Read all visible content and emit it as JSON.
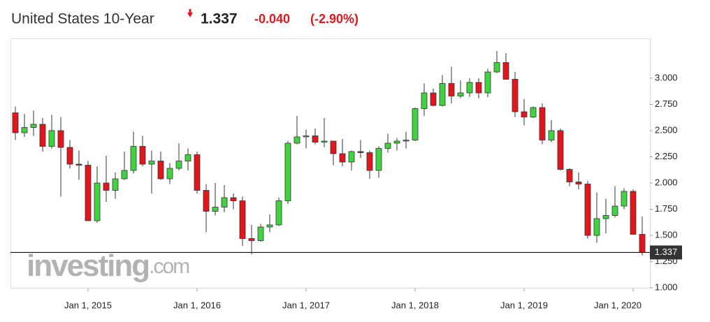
{
  "header": {
    "name": "United States 10-Year",
    "price": "1.337",
    "change": "-0.040",
    "change_pct": "(-2.90%)"
  },
  "chart_data": {
    "type": "candlestick",
    "watermark": [
      "investing",
      ".com"
    ],
    "categories": [
      null,
      null,
      null,
      null,
      null,
      null,
      null,
      null,
      "Jan 1, 2015",
      null,
      null,
      null,
      null,
      null,
      null,
      null,
      null,
      null,
      null,
      null,
      "Jan 1, 2016",
      null,
      null,
      null,
      null,
      null,
      null,
      null,
      null,
      null,
      null,
      null,
      "Jan 1, 2017",
      null,
      null,
      null,
      null,
      null,
      null,
      null,
      null,
      null,
      null,
      null,
      "Jan 1, 2018",
      null,
      null,
      null,
      null,
      null,
      null,
      null,
      null,
      null,
      null,
      null,
      "Jan 1, 2019",
      null,
      null,
      null,
      null,
      null,
      null,
      null,
      null,
      null,
      null,
      null,
      "Jan 1, 2020",
      null
    ],
    "open": [
      2.67,
      2.48,
      2.53,
      2.56,
      2.35,
      2.5,
      2.34,
      2.18,
      2.17,
      1.64,
      2.0,
      1.93,
      2.04,
      2.12,
      2.35,
      2.18,
      2.21,
      2.04,
      2.14,
      2.21,
      2.27,
      1.93,
      1.73,
      1.77,
      1.86,
      1.83,
      1.47,
      1.45,
      1.58,
      1.6,
      1.83,
      2.38,
      2.44,
      2.45,
      2.39,
      2.4,
      2.28,
      2.2,
      2.3,
      2.29,
      2.12,
      2.33,
      2.38,
      2.4,
      2.41,
      2.71,
      2.86,
      2.74,
      2.95,
      2.83,
      2.86,
      2.96,
      2.86,
      3.06,
      3.15,
      2.99,
      2.68,
      2.63,
      2.72,
      2.41,
      2.5,
      2.13,
      2.01,
      1.99,
      1.5,
      1.66,
      1.69,
      1.78,
      1.92,
      1.51
    ],
    "high": [
      2.73,
      2.66,
      2.69,
      2.62,
      2.65,
      2.63,
      2.41,
      2.31,
      2.21,
      2.16,
      2.26,
      2.1,
      2.3,
      2.49,
      2.45,
      2.31,
      2.3,
      2.19,
      2.38,
      2.33,
      2.3,
      1.99,
      2.0,
      1.98,
      1.9,
      1.87,
      1.6,
      1.61,
      1.7,
      1.86,
      2.4,
      2.64,
      2.51,
      2.52,
      2.62,
      2.4,
      2.42,
      2.31,
      2.41,
      2.31,
      2.35,
      2.47,
      2.43,
      2.49,
      2.72,
      2.95,
      2.9,
      3.03,
      3.11,
      2.98,
      3.0,
      3.0,
      3.09,
      3.26,
      3.24,
      3.06,
      2.8,
      2.73,
      2.76,
      2.6,
      2.52,
      2.14,
      2.1,
      2.02,
      1.91,
      1.85,
      1.97,
      1.95,
      1.94,
      1.68
    ],
    "low": [
      2.41,
      2.44,
      2.45,
      2.3,
      2.33,
      1.87,
      2.14,
      2.03,
      1.64,
      1.62,
      1.82,
      1.85,
      2.03,
      2.09,
      2.16,
      1.9,
      2.03,
      1.99,
      2.12,
      2.12,
      1.9,
      1.53,
      1.69,
      1.72,
      1.75,
      1.4,
      1.32,
      1.44,
      1.53,
      1.59,
      1.8,
      2.37,
      2.33,
      2.37,
      2.34,
      2.17,
      2.16,
      2.12,
      2.24,
      2.04,
      2.05,
      2.29,
      2.31,
      2.33,
      2.4,
      2.64,
      2.73,
      2.73,
      2.76,
      2.81,
      2.82,
      2.81,
      2.82,
      3.05,
      2.99,
      2.63,
      2.55,
      2.62,
      2.37,
      2.39,
      2.12,
      1.97,
      1.94,
      1.47,
      1.43,
      1.52,
      1.67,
      1.75,
      1.51,
      1.31
    ],
    "close": [
      2.48,
      2.53,
      2.56,
      2.35,
      2.5,
      2.34,
      2.18,
      2.17,
      1.64,
      2.0,
      1.93,
      2.04,
      2.12,
      2.35,
      2.18,
      2.21,
      2.04,
      2.14,
      2.21,
      2.27,
      1.93,
      1.73,
      1.77,
      1.86,
      1.83,
      1.47,
      1.45,
      1.58,
      1.6,
      1.83,
      2.38,
      2.44,
      2.45,
      2.39,
      2.4,
      2.28,
      2.2,
      2.3,
      2.29,
      2.12,
      2.33,
      2.38,
      2.4,
      2.41,
      2.71,
      2.86,
      2.74,
      2.95,
      2.83,
      2.86,
      2.96,
      2.86,
      3.06,
      3.15,
      2.99,
      2.68,
      2.63,
      2.72,
      2.41,
      2.5,
      2.13,
      2.01,
      1.99,
      1.5,
      1.66,
      1.69,
      1.78,
      1.92,
      1.51,
      1.337
    ],
    "up_color": "#3fd43f",
    "down_color": "#e3161b",
    "last_value": {
      "value": 1.337,
      "label": "1.337"
    },
    "ylim": [
      0.98,
      3.38
    ],
    "yticks": [
      {
        "value": 1,
        "label": "1.000"
      },
      {
        "value": 1.25,
        "label": "1.250"
      },
      {
        "value": 1.5,
        "label": "1.500"
      },
      {
        "value": 1.75,
        "label": "1.750"
      },
      {
        "value": 2,
        "label": "2.000"
      },
      {
        "value": 2.25,
        "label": "2.250"
      },
      {
        "value": 2.5,
        "label": "2.500"
      },
      {
        "value": 2.75,
        "label": "2.750"
      },
      {
        "value": 3,
        "label": "3.000"
      }
    ]
  }
}
